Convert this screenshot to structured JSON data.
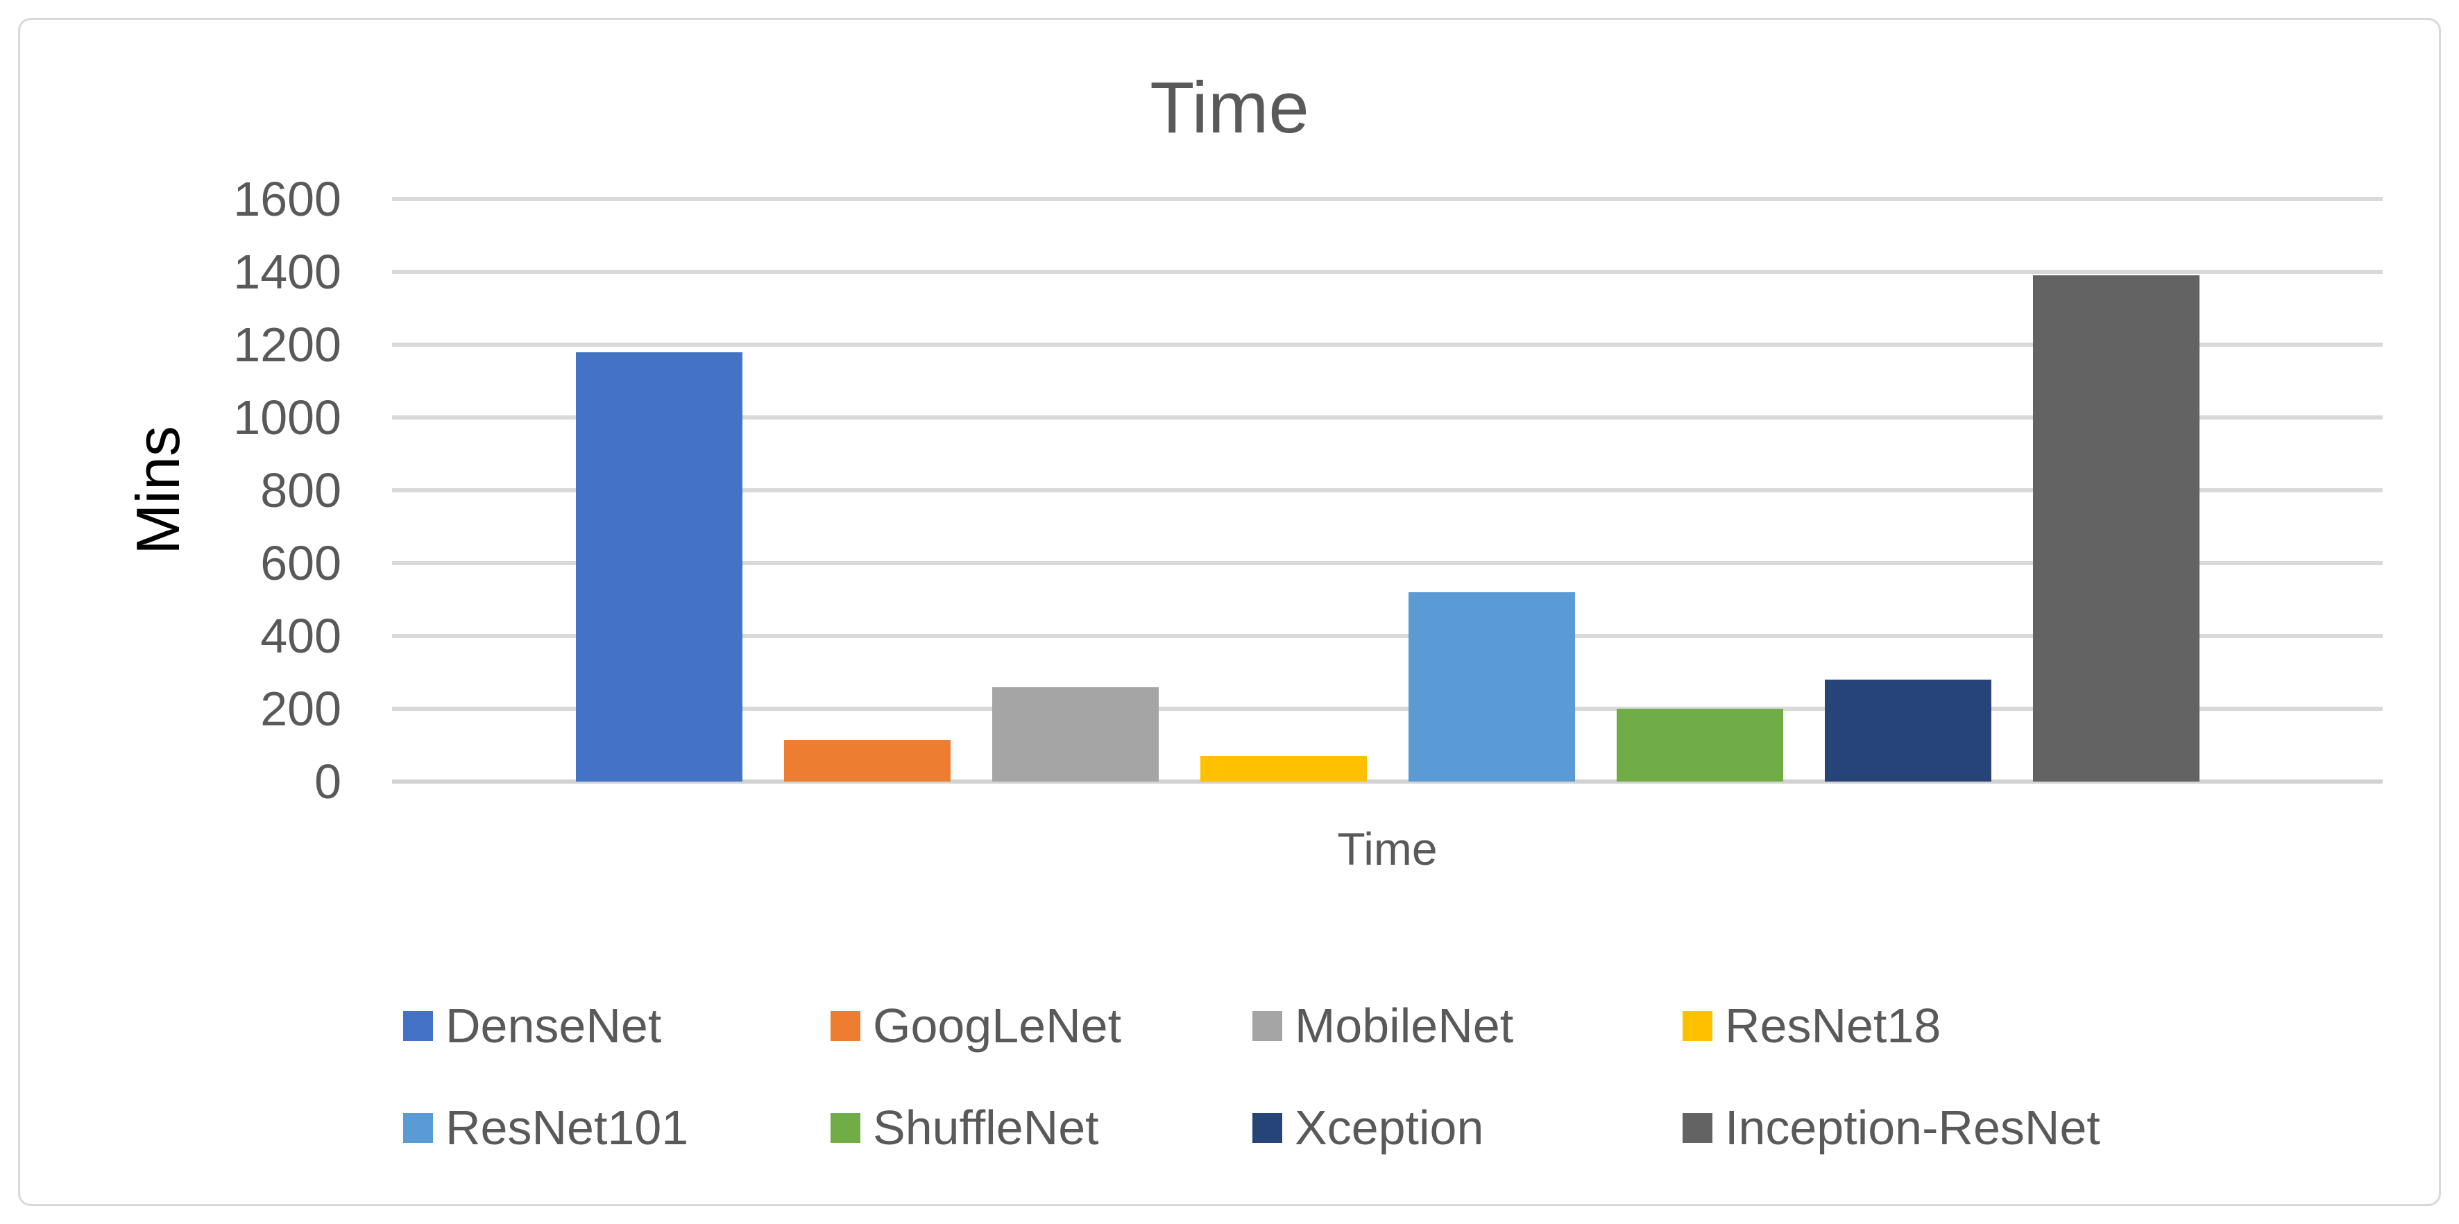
{
  "chart": {
    "title": "Time",
    "y_axis_title": "Mins",
    "x_axis_title": "Time",
    "tick_labels": [
      "0",
      "200",
      "400",
      "600",
      "800",
      "1000",
      "1200",
      "1400",
      "1600"
    ]
  },
  "chart_data": {
    "type": "bar",
    "title": "Time",
    "xlabel": "Time",
    "ylabel": "Mins",
    "ylim": [
      0,
      1600
    ],
    "ytick_step": 200,
    "grid": true,
    "legend_position": "bottom",
    "categories": [
      "DenseNet",
      "GoogLeNet",
      "MobileNet",
      "ResNet18",
      "ResNet101",
      "ShuffleNet",
      "Xception",
      "Inception-ResNet"
    ],
    "series": [
      {
        "name": "DenseNet",
        "value": 1180,
        "color": "#4472C4"
      },
      {
        "name": "GoogLeNet",
        "value": 115,
        "color": "#ED7D31"
      },
      {
        "name": "MobileNet",
        "value": 260,
        "color": "#A5A5A5"
      },
      {
        "name": "ResNet18",
        "value": 70,
        "color": "#FFC000"
      },
      {
        "name": "ResNet101",
        "value": 520,
        "color": "#5B9BD5"
      },
      {
        "name": "ShuffleNet",
        "value": 200,
        "color": "#70AD47"
      },
      {
        "name": "Xception",
        "value": 280,
        "color": "#264478"
      },
      {
        "name": "Inception-ResNet",
        "value": 1390,
        "color": "#636363"
      }
    ]
  },
  "colors": {
    "text": "#595959",
    "gridline": "#D9D9D9",
    "axis_title": "#000000",
    "frame_border": "#D9D9D9",
    "background": "#FFFFFF"
  }
}
